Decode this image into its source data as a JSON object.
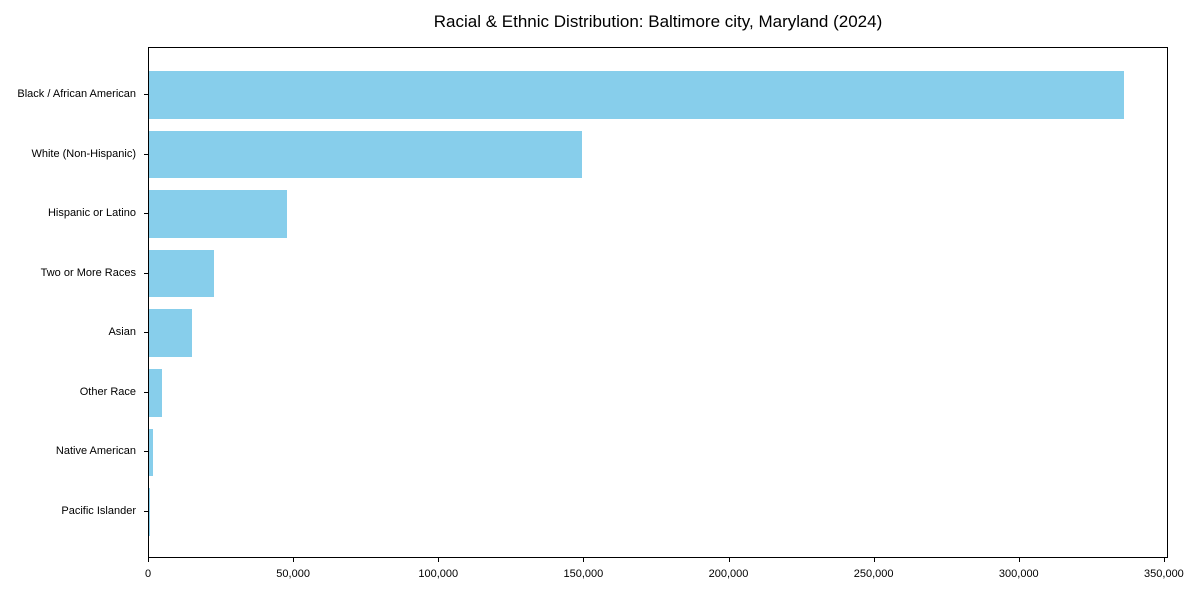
{
  "chart_data": {
    "type": "bar",
    "orientation": "horizontal",
    "title": "Racial & Ethnic Distribution: Baltimore city, Maryland (2024)",
    "categories": [
      "Black / African American",
      "White (Non-Hispanic)",
      "Hispanic or Latino",
      "Two or More Races",
      "Asian",
      "Other Race",
      "Native American",
      "Pacific Islander"
    ],
    "values": [
      335800,
      149200,
      47500,
      22400,
      14800,
      4500,
      1400,
      300
    ],
    "xlabel": "",
    "ylabel": "",
    "xlim": [
      0,
      351400
    ],
    "x_tick_values": [
      0,
      50000,
      100000,
      150000,
      200000,
      250000,
      300000,
      350000
    ],
    "x_tick_labels": [
      "0",
      "50,000",
      "100,000",
      "150,000",
      "200,000",
      "250,000",
      "300,000",
      "350,000"
    ],
    "grid": false,
    "legend": null
  },
  "colors": {
    "bar": "#87CEEB",
    "axis": "#000000",
    "text": "#000000",
    "background": "#FFFFFF"
  }
}
